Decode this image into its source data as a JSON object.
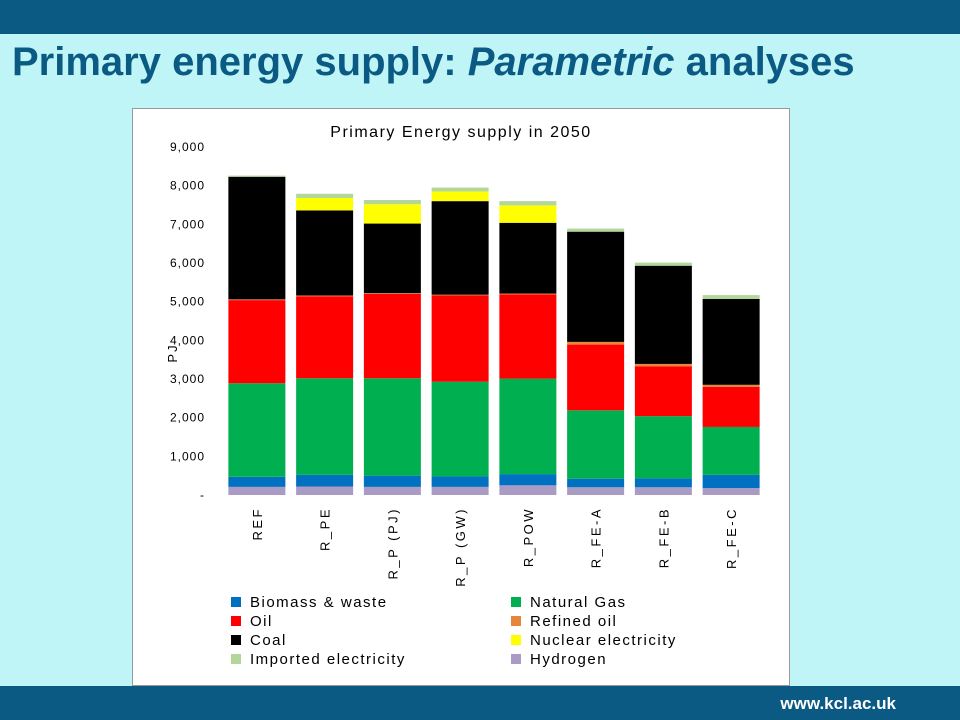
{
  "slide": {
    "title_main": "Primary energy supply: ",
    "title_em": "Parametric",
    "title_tail": " analyses",
    "footer_url": "www.kcl.ac.uk"
  },
  "colors": {
    "header_bar": "#0b5a84",
    "background": "#bff5f7",
    "title_text": "#0b5a84"
  },
  "chart_data": {
    "type": "bar",
    "stacked": true,
    "title": "Primary Energy supply in 2050",
    "ylabel": "PJ",
    "xlabel": "",
    "ylim": [
      0,
      9000
    ],
    "yticks": [
      {
        "value": 0,
        "label": "-"
      },
      {
        "value": 1000,
        "label": "1,000"
      },
      {
        "value": 2000,
        "label": "2,000"
      },
      {
        "value": 3000,
        "label": "3,000"
      },
      {
        "value": 4000,
        "label": "4,000"
      },
      {
        "value": 5000,
        "label": "5,000"
      },
      {
        "value": 6000,
        "label": "6,000"
      },
      {
        "value": 7000,
        "label": "7,000"
      },
      {
        "value": 8000,
        "label": "8,000"
      },
      {
        "value": 9000,
        "label": "9,000"
      }
    ],
    "grid": false,
    "legend_position": "bottom",
    "categories": [
      "REF",
      "R_PE",
      "R_P (PJ)",
      "R_P (GW)",
      "R_POW",
      "R_FE-A",
      "R_FE-B",
      "R_FE-C"
    ],
    "series": [
      {
        "name": "Hydrogen",
        "color": "#a99bc4",
        "values": [
          210,
          220,
          210,
          210,
          250,
          200,
          200,
          180
        ]
      },
      {
        "name": "Biomass & waste",
        "color": "#0070c0",
        "values": [
          260,
          300,
          290,
          270,
          290,
          220,
          230,
          340
        ]
      },
      {
        "name": "Natural Gas",
        "color": "#00b050",
        "values": [
          2420,
          2500,
          2520,
          2450,
          2470,
          1770,
          1610,
          1240
        ]
      },
      {
        "name": "Oil",
        "color": "#ff0000",
        "values": [
          2150,
          2120,
          2180,
          2230,
          2180,
          1700,
          1290,
          1040
        ]
      },
      {
        "name": "Refined oil",
        "color": "#e6863c",
        "values": [
          20,
          20,
          20,
          20,
          20,
          70,
          60,
          50
        ]
      },
      {
        "name": "Coal",
        "color": "#000000",
        "values": [
          3170,
          2200,
          1800,
          2420,
          1830,
          2850,
          2540,
          2220
        ]
      },
      {
        "name": "Nuclear electricity",
        "color": "#ffff00",
        "values": [
          0,
          320,
          500,
          250,
          450,
          0,
          0,
          0
        ]
      },
      {
        "name": "Imported electricity",
        "color": "#b3d69b",
        "values": [
          30,
          110,
          110,
          100,
          110,
          80,
          80,
          100
        ]
      }
    ],
    "legend": [
      {
        "name": "Biomass & waste",
        "color": "#0070c0"
      },
      {
        "name": "Natural Gas",
        "color": "#00b050"
      },
      {
        "name": "Oil",
        "color": "#ff0000"
      },
      {
        "name": "Refined oil",
        "color": "#e6863c"
      },
      {
        "name": "Coal",
        "color": "#000000"
      },
      {
        "name": "Nuclear electricity",
        "color": "#ffff00"
      },
      {
        "name": "Imported electricity",
        "color": "#b3d69b"
      },
      {
        "name": "Hydrogen",
        "color": "#a99bc4"
      }
    ]
  }
}
